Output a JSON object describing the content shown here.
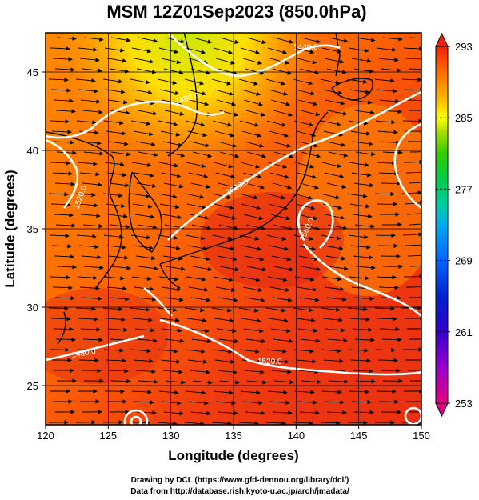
{
  "title": "MSM 12Z01Sep2023 (850.0hPa)",
  "map": {
    "xlabel": "Longitude (degrees)",
    "ylabel": "Latitude  (degrees)",
    "lon_range": [
      120,
      150
    ],
    "lat_range": [
      22.5,
      47.5
    ],
    "lon_ticks": [
      "120",
      "125",
      "130",
      "135",
      "140",
      "145",
      "150"
    ],
    "lat_ticks": [
      "25",
      "30",
      "35",
      "40",
      "45"
    ],
    "grid": true,
    "field": "temperature (shaded)",
    "overlays": [
      "wind streamlines",
      "geopotential height contours (white)"
    ]
  },
  "colorbar": {
    "min": 253,
    "max": 293,
    "labels": [
      "293",
      "285",
      "277",
      "269",
      "261",
      "253"
    ],
    "colors": [
      "#e5007f",
      "#9900cc",
      "#3300cc",
      "#0022cc",
      "#0066ff",
      "#00aaee",
      "#00ccaa",
      "#00cc55",
      "#33cc00",
      "#aadd00",
      "#ffff00",
      "#ffbb00",
      "#ff8800",
      "#ff5500",
      "#ee2200"
    ]
  },
  "contour_labels": [
    "1440.0",
    "1480.0",
    "1520.0",
    "1520.0",
    "1560.0",
    "1480.0",
    "1520.0"
  ],
  "credits": {
    "line1": "Drawing by DCL (https://www.gfd-dennou.org/library/dcl/)",
    "line2": "Data from http://database.rish.kyoto-u.ac.jp/arch/jmadata/"
  }
}
